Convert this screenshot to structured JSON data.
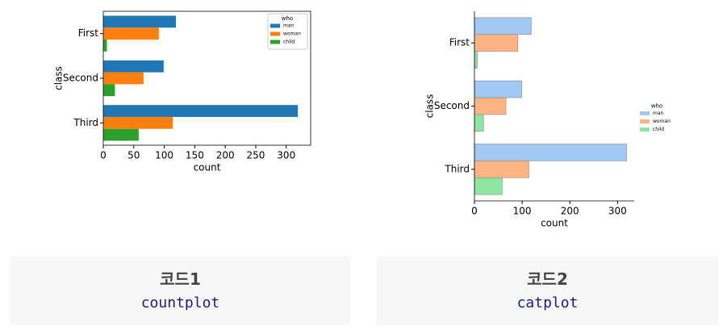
{
  "chart_data": [
    {
      "type": "bar",
      "orientation": "horizontal",
      "x_label": "count",
      "y_label": "class",
      "categories": [
        "First",
        "Second",
        "Third"
      ],
      "series": [
        {
          "name": "man",
          "color": "#1f77b4",
          "values": [
            119,
            99,
            319
          ]
        },
        {
          "name": "woman",
          "color": "#ff7f0e",
          "values": [
            91,
            66,
            114
          ]
        },
        {
          "name": "child",
          "color": "#2ca02c",
          "values": [
            6,
            19,
            58
          ]
        }
      ],
      "xlim": [
        0,
        340
      ],
      "xticks": [
        0,
        50,
        100,
        150,
        200,
        250,
        300
      ],
      "legend_title": "who",
      "legend_position": "upper right",
      "spines": "box"
    },
    {
      "type": "bar",
      "orientation": "horizontal",
      "x_label": "count",
      "y_label": "class",
      "categories": [
        "First",
        "Second",
        "Third"
      ],
      "series": [
        {
          "name": "man",
          "color": "#a1c9f4",
          "values": [
            119,
            99,
            319
          ]
        },
        {
          "name": "woman",
          "color": "#ffb482",
          "values": [
            91,
            66,
            114
          ]
        },
        {
          "name": "child",
          "color": "#8de5a1",
          "values": [
            6,
            19,
            58
          ]
        }
      ],
      "xlim": [
        0,
        335
      ],
      "xticks": [
        0,
        100,
        200,
        300
      ],
      "legend_title": "who",
      "legend_position": "outside right",
      "spines": "left-bottom"
    }
  ],
  "captions": [
    {
      "title": "코드1",
      "code": "countplot"
    },
    {
      "title": "코드2",
      "code": "catplot"
    }
  ]
}
